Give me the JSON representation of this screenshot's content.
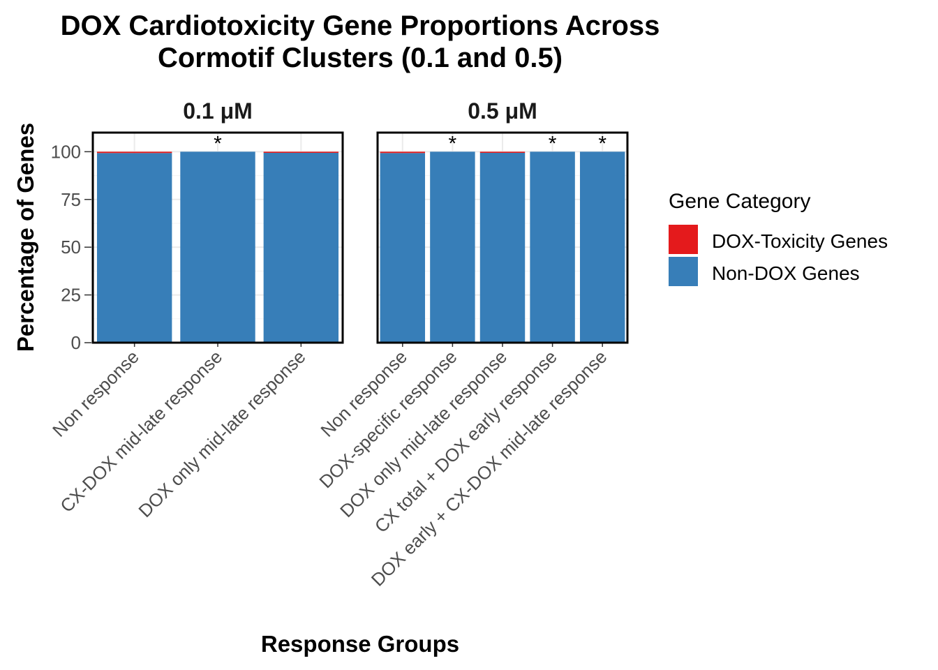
{
  "chart_data": {
    "type": "bar",
    "stacked": true,
    "title_lines": [
      "DOX Cardiotoxicity Gene Proportions Across",
      "Cormotif Clusters (0.1 and 0.5)"
    ],
    "xlabel": "Response Groups",
    "ylabel": "Percentage of Genes",
    "ylim": [
      0,
      110
    ],
    "yticks": [
      "0",
      "25",
      "50",
      "75",
      "100"
    ],
    "legend": {
      "title": "Gene Category",
      "placement": "right",
      "entries": [
        {
          "label": "DOX-Toxicity Genes",
          "color": "#E41A1C"
        },
        {
          "label": "Non-DOX Genes",
          "color": "#377EB8"
        }
      ]
    },
    "grid": true,
    "panels": [
      {
        "strip": "0.1 μM",
        "categories": [
          "Non response",
          "CX-DOX mid-late response",
          "DOX only mid-late response"
        ],
        "series": [
          {
            "key": "non_dox",
            "color": "#377EB8",
            "values": [
              99.3,
              100.0,
              99.4
            ]
          },
          {
            "key": "dox_tox",
            "color": "#E41A1C",
            "values": [
              0.7,
              0.0,
              0.6
            ]
          }
        ],
        "significance": [
          "",
          "*",
          ""
        ]
      },
      {
        "strip": "0.5 μM",
        "categories": [
          "Non response",
          "DOX-specific response",
          "DOX only mid-late response",
          "CX total + DOX early response",
          "DOX early + CX-DOX mid-late response"
        ],
        "series": [
          {
            "key": "non_dox",
            "color": "#377EB8",
            "values": [
              99.3,
              100.0,
              99.4,
              100.0,
              100.0
            ]
          },
          {
            "key": "dox_tox",
            "color": "#E41A1C",
            "values": [
              0.7,
              0.0,
              0.6,
              0.0,
              0.0
            ]
          }
        ],
        "significance": [
          "",
          "*",
          "",
          "*",
          "*"
        ]
      }
    ]
  }
}
